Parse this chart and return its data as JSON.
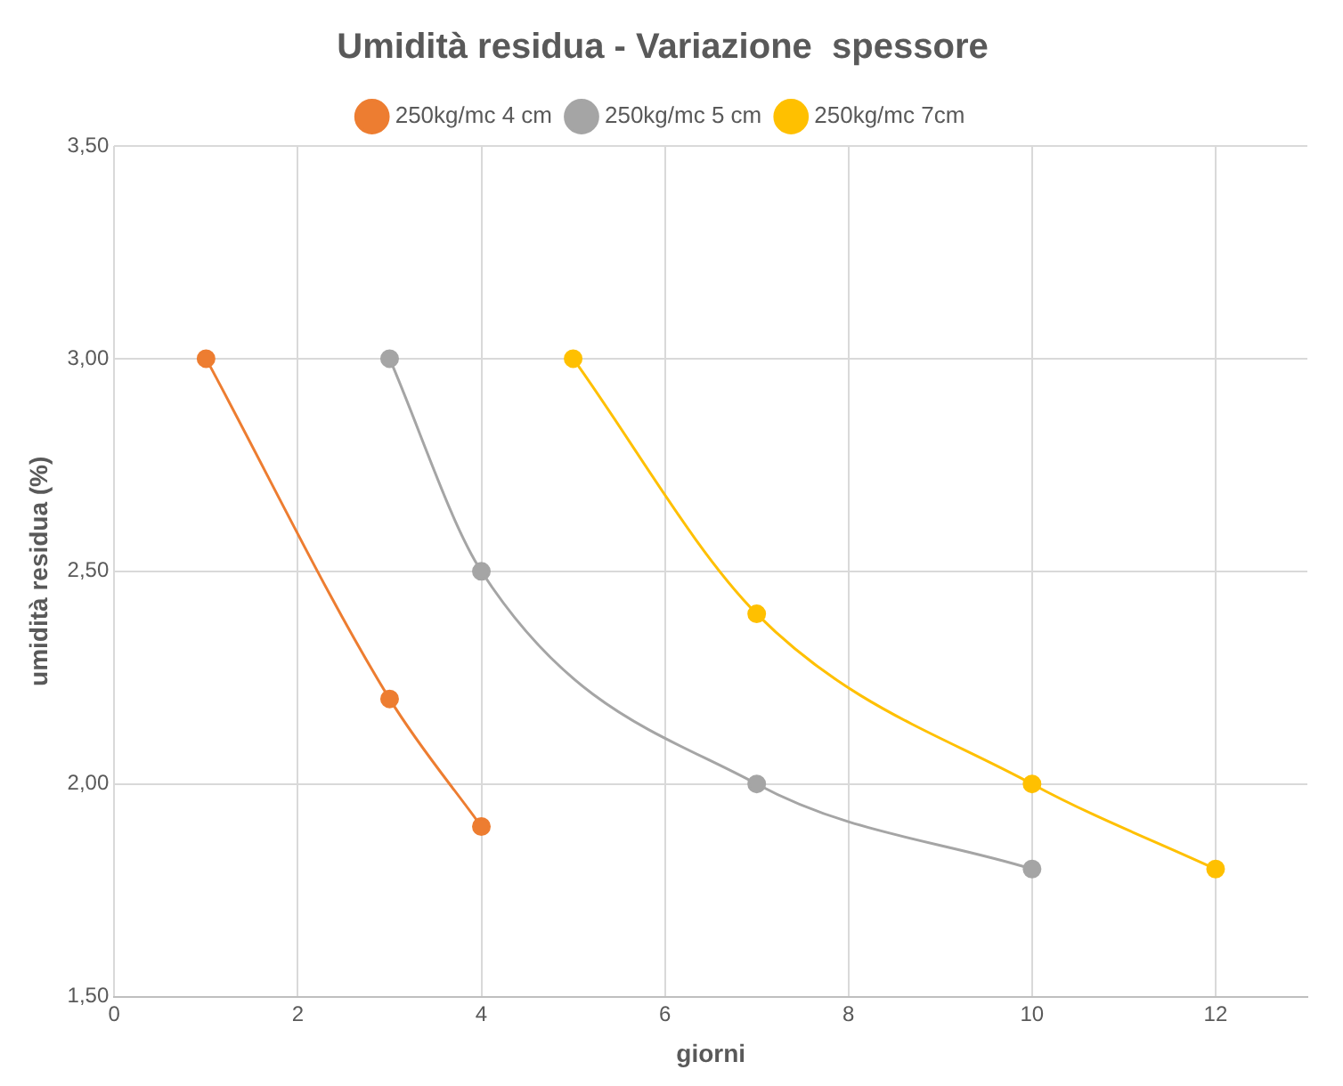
{
  "chart_data": {
    "type": "line",
    "title": "Umidità residua - Variazione  spessore",
    "xlabel": "giorni",
    "ylabel": "umidità residua (%)",
    "xlim": [
      0,
      13
    ],
    "xticks": [
      0,
      2,
      4,
      6,
      8,
      10,
      12
    ],
    "ylim": [
      1.5,
      3.5
    ],
    "yticks": [
      {
        "value": 1.5,
        "label": "1,50"
      },
      {
        "value": 2,
        "label": "2,00"
      },
      {
        "value": 2.5,
        "label": "2,50"
      },
      {
        "value": 3,
        "label": "3,00"
      },
      {
        "value": 3.5,
        "label": "3,50"
      }
    ],
    "grid": true,
    "legend": "top",
    "marker": "circle",
    "line_style": "solid",
    "series": [
      {
        "name": "250kg/mc 4 cm",
        "color": "#ed7d31",
        "x": [
          1,
          3,
          4
        ],
        "values": [
          3.0,
          2.2,
          1.9
        ]
      },
      {
        "name": "250kg/mc 5 cm",
        "color": "#a5a5a5",
        "x": [
          3,
          4,
          7,
          10
        ],
        "values": [
          3.0,
          2.5,
          2.0,
          1.8
        ]
      },
      {
        "name": "250kg/mc 7cm",
        "color": "#ffc000",
        "x": [
          5,
          7,
          10,
          12
        ],
        "values": [
          3.0,
          2.4,
          2.0,
          1.8
        ]
      }
    ]
  }
}
